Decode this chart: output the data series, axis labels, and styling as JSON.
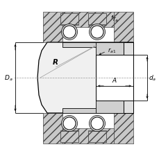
{
  "bg_color": "#ffffff",
  "line_color": "#000000",
  "hatch_fc": "#c8c8c8",
  "hatch_ec": "#444444",
  "race_fc": "#d0d0d0",
  "outer_fc": "#f0f0f0",
  "white": "#ffffff",
  "dim_color": "#000000",
  "dash_color": "#999999",
  "labels": {
    "ra": "r$_a$",
    "ra1": "r$_{a1}$",
    "R": "R",
    "Da": "D$_a$",
    "da": "d$_a$",
    "A": "A"
  },
  "figsize": [
    2.3,
    2.26
  ],
  "dpi": 100
}
